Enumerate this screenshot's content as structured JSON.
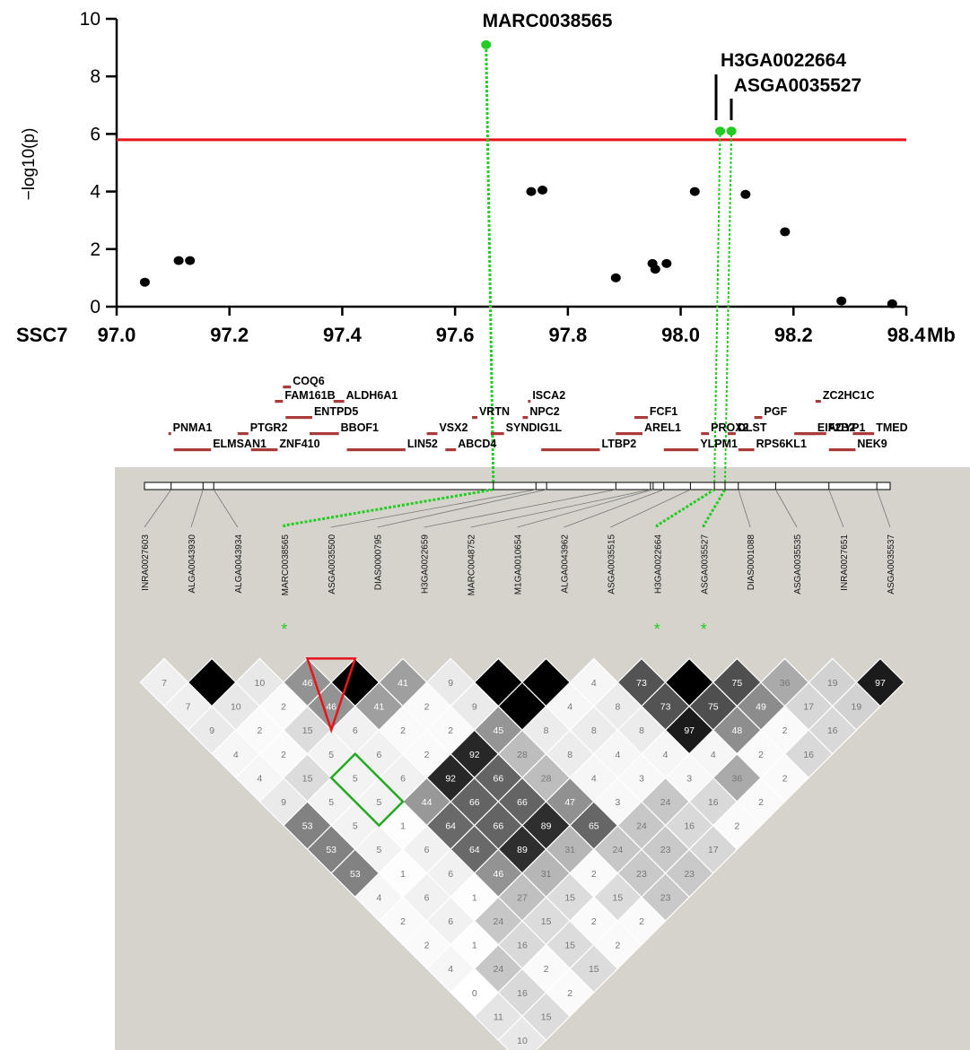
{
  "chart_data": [
    {
      "type": "scatter",
      "title": "",
      "ylabel": "−log10(p)",
      "xlabel_left": "SSC7",
      "xlabel_unit": "Mb",
      "xlim": [
        97.0,
        98.4
      ],
      "ylim": [
        0,
        10
      ],
      "xticks": [
        "97.0",
        "97.2",
        "97.4",
        "97.6",
        "97.8",
        "98.0",
        "98.2",
        "98.4"
      ],
      "yticks": [
        "0",
        "2",
        "4",
        "6",
        "8",
        "10"
      ],
      "threshold": 5.8,
      "points": [
        {
          "x": 97.05,
          "y": 0.85
        },
        {
          "x": 97.11,
          "y": 1.6
        },
        {
          "x": 97.13,
          "y": 1.6
        },
        {
          "x": 97.655,
          "y": 9.1,
          "highlight": true
        },
        {
          "x": 97.735,
          "y": 4.0
        },
        {
          "x": 97.755,
          "y": 4.05
        },
        {
          "x": 97.885,
          "y": 1.0
        },
        {
          "x": 97.95,
          "y": 1.5
        },
        {
          "x": 97.955,
          "y": 1.3
        },
        {
          "x": 97.975,
          "y": 1.5
        },
        {
          "x": 98.025,
          "y": 4.0
        },
        {
          "x": 98.07,
          "y": 6.1,
          "highlight": true
        },
        {
          "x": 98.09,
          "y": 6.1,
          "highlight": true
        },
        {
          "x": 98.115,
          "y": 3.9
        },
        {
          "x": 98.185,
          "y": 2.6
        },
        {
          "x": 98.285,
          "y": 0.2
        },
        {
          "x": 98.375,
          "y": 0.1
        }
      ],
      "annotations": [
        "MARC0038565",
        "H3GA0022664",
        "ASGA0035527"
      ],
      "colors": {
        "threshold": "#e8141c",
        "highlight": "#22cc22",
        "point": "#000000"
      }
    },
    {
      "type": "heatmap",
      "title": "",
      "genes": [
        {
          "name": "COQ6",
          "s": 97.26,
          "e": 97.275
        },
        {
          "name": "FAM161B",
          "s": 97.245,
          "e": 97.26
        },
        {
          "name": "ALDH6A1",
          "s": 97.355,
          "e": 97.375
        },
        {
          "name": "ENTPD5",
          "s": 97.265,
          "e": 97.315
        },
        {
          "name": "VRTN",
          "s": 97.615,
          "e": 97.625
        },
        {
          "name": "ISCA2",
          "s": 97.72,
          "e": 97.725
        },
        {
          "name": "NPC2",
          "s": 97.71,
          "e": 97.72
        },
        {
          "name": "FCF1",
          "s": 97.92,
          "e": 97.945
        },
        {
          "name": "PGF",
          "s": 98.145,
          "e": 98.16
        },
        {
          "name": "ZC2HC1C",
          "s": 98.26,
          "e": 98.27
        },
        {
          "name": "PNMA1",
          "s": 97.045,
          "e": 97.05
        },
        {
          "name": "PTGR2",
          "s": 97.175,
          "e": 97.195
        },
        {
          "name": "BBOF1",
          "s": 97.31,
          "e": 97.365
        },
        {
          "name": "VSX2",
          "s": 97.53,
          "e": 97.55
        },
        {
          "name": "SYNDIG1L",
          "s": 97.65,
          "e": 97.675
        },
        {
          "name": "AREL1",
          "s": 97.885,
          "e": 97.935
        },
        {
          "name": "PROX2",
          "s": 98.045,
          "e": 98.06
        },
        {
          "name": "DLST",
          "s": 98.095,
          "e": 98.11
        },
        {
          "name": "EIF2B2",
          "s": 98.22,
          "e": 98.26
        },
        {
          "name": "ACYP1",
          "s": 98.23,
          "e": 98.28
        },
        {
          "name": "TMED",
          "s": 98.33,
          "e": 98.37
        },
        {
          "name": "ELMSAN1",
          "s": 97.055,
          "e": 97.125
        },
        {
          "name": "ZNF410",
          "s": 97.2,
          "e": 97.25
        },
        {
          "name": "LIN52",
          "s": 97.38,
          "e": 97.49
        },
        {
          "name": "ABCD4",
          "s": 97.565,
          "e": 97.585
        },
        {
          "name": "LTBP2",
          "s": 97.745,
          "e": 97.855
        },
        {
          "name": "YLPM1",
          "s": 97.975,
          "e": 98.04
        },
        {
          "name": "RPS6KL1",
          "s": 98.115,
          "e": 98.145
        },
        {
          "name": "NEK9",
          "s": 98.285,
          "e": 98.335
        }
      ],
      "snps": [
        "INRA0027603",
        "ALGA0043930",
        "ALGA0043934",
        "MARC0038565",
        "ASGA0035500",
        "DIAS0000795",
        "H3GA0022659",
        "MARC0048752",
        "M1GA0010654",
        "ALGA0043962",
        "ASGA0035515",
        "H3GA0022664",
        "ASGA0035527",
        "DIAS0001088",
        "ASGA0035535",
        "INRA0027651",
        "ASGA0035537"
      ],
      "snp_mb": [
        97.05,
        97.11,
        97.13,
        97.655,
        97.735,
        97.755,
        97.885,
        97.95,
        97.955,
        97.975,
        98.025,
        98.07,
        98.09,
        98.115,
        98.185,
        98.285,
        98.375
      ],
      "highlighted_snps": [
        3,
        11,
        12
      ],
      "ld": [
        [
          7,
          7,
          9,
          4,
          4,
          9,
          53,
          53,
          53,
          4,
          2,
          2,
          4,
          0,
          11,
          10
        ],
        [
          100,
          10,
          2,
          2,
          15,
          5,
          5,
          5,
          1,
          6,
          6,
          1,
          24,
          16,
          15
        ],
        [
          10,
          2,
          15,
          5,
          5,
          5,
          1,
          6,
          6,
          1,
          24,
          16,
          2,
          2
        ],
        [
          46,
          46,
          6,
          6,
          6,
          44,
          64,
          64,
          46,
          27,
          15,
          15,
          15
        ],
        [
          100,
          41,
          2,
          2,
          92,
          66,
          66,
          89,
          31,
          15,
          2,
          2
        ],
        [
          41,
          2,
          2,
          92,
          66,
          66,
          89,
          31,
          2,
          15,
          2
        ],
        [
          9,
          9,
          45,
          28,
          28,
          47,
          65,
          24,
          23,
          23
        ],
        [
          100,
          100,
          8,
          8,
          4,
          3,
          24,
          23,
          23
        ],
        [
          100,
          4,
          8,
          4,
          3,
          24,
          16,
          17
        ],
        [
          4,
          8,
          8,
          4,
          3,
          16,
          2
        ],
        [
          73,
          73,
          97,
          4,
          36,
          2
        ],
        [
          100,
          75,
          48,
          2,
          2
        ],
        [
          75,
          49,
          2,
          16
        ],
        [
          36,
          17,
          16
        ],
        [
          19,
          19
        ],
        [
          97
        ]
      ],
      "boxes": [
        {
          "color": "#e8141c",
          "cells": [
            [
              3,
              4
            ],
            [
              3,
              5
            ],
            [
              4,
              5
            ]
          ]
        },
        {
          "color": "#22aa22",
          "cells": [
            [
              2,
              7
            ],
            [
              2,
              8
            ]
          ]
        }
      ],
      "colors": {
        "panel_bg": "#d6d3cc",
        "gene_bar": "#a83a3a"
      }
    }
  ]
}
